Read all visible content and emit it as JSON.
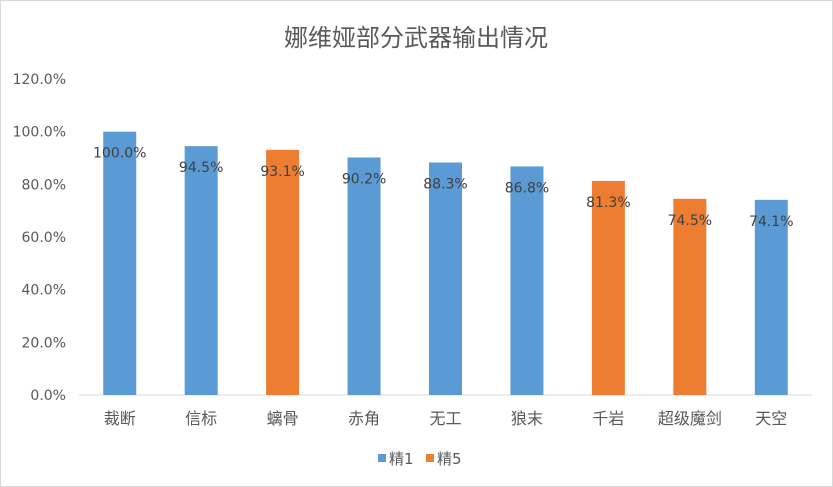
{
  "chart_data": {
    "type": "bar",
    "title": "娜维娅部分武器输出情况",
    "categories": [
      "裁断",
      "信标",
      "螭骨",
      "赤角",
      "无工",
      "狼末",
      "千岩",
      "超级魔剑",
      "天空"
    ],
    "values": [
      100.0,
      94.5,
      93.1,
      90.2,
      88.3,
      86.8,
      81.3,
      74.5,
      74.1
    ],
    "data_labels": [
      "100.0%",
      "94.5%",
      "93.1%",
      "90.2%",
      "88.3%",
      "86.8%",
      "81.3%",
      "74.5%",
      "74.1%"
    ],
    "bar_series": [
      "精1",
      "精1",
      "精5",
      "精1",
      "精1",
      "精1",
      "精5",
      "精5",
      "精1"
    ],
    "series": [
      {
        "name": "精1",
        "color": "#5b9bd5"
      },
      {
        "name": "精5",
        "color": "#ed7d31"
      }
    ],
    "ylim": [
      0,
      120
    ],
    "yticks": [
      "0.0%",
      "20.0%",
      "40.0%",
      "60.0%",
      "80.0%",
      "100.0%",
      "120.0%"
    ],
    "xlabel": "",
    "ylabel": "",
    "grid": false,
    "legend": "bottom"
  }
}
